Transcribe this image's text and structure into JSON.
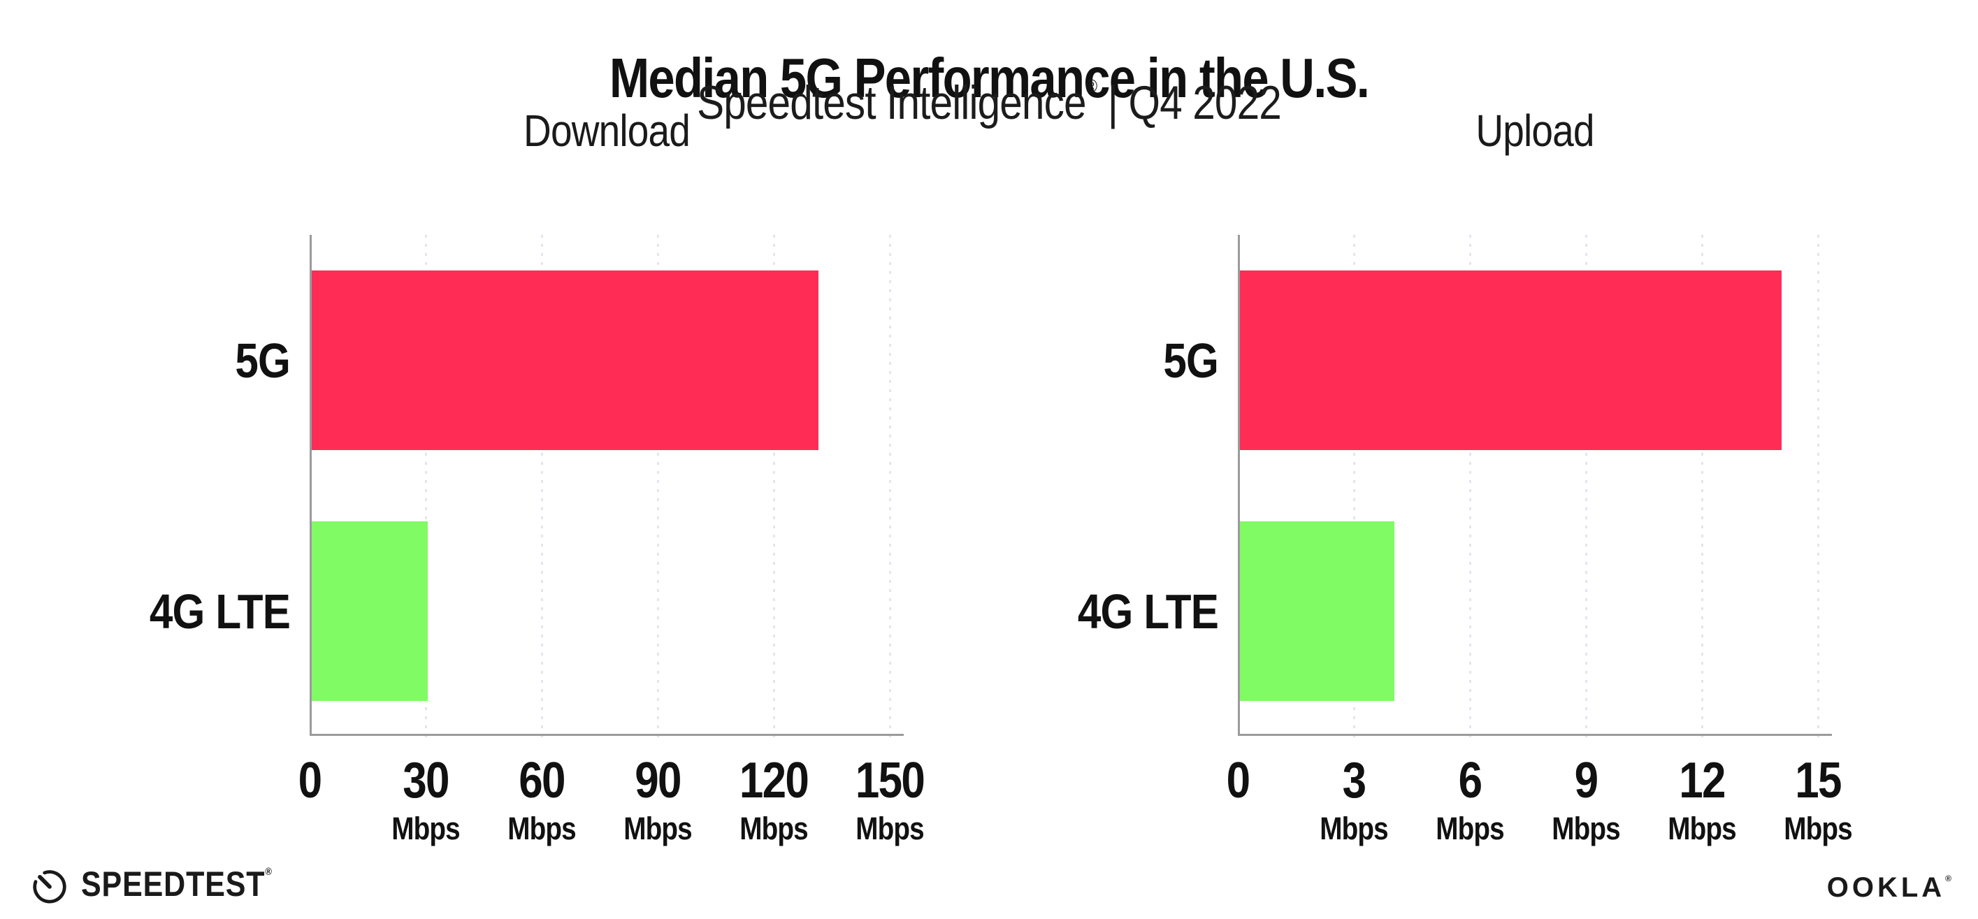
{
  "page": {
    "title": "Median 5G Performance in the U.S.",
    "subtitle": {
      "brand": "Speedtest Intelligence",
      "reg_mark": "®",
      "separator": "|",
      "period": "Q4 2022"
    }
  },
  "chart_data": [
    {
      "type": "bar",
      "orientation": "horizontal",
      "panel": "download",
      "title": "Download",
      "categories": [
        "5G",
        "4G LTE"
      ],
      "values": [
        131,
        30
      ],
      "unit": "Mbps",
      "xlabel": "",
      "ylabel": "",
      "xlim": [
        0,
        150
      ],
      "xticks": [
        0,
        30,
        60,
        90,
        120,
        150
      ],
      "series_colors": {
        "5G": "#FF2D55",
        "4G LTE": "#80FB64"
      },
      "grid": "dotted-vertical-gridlines",
      "legend": "none"
    },
    {
      "type": "bar",
      "orientation": "horizontal",
      "panel": "upload",
      "title": "Upload",
      "categories": [
        "5G",
        "4G LTE"
      ],
      "values": [
        14,
        4
      ],
      "unit": "Mbps",
      "xlabel": "",
      "ylabel": "",
      "xlim": [
        0,
        15
      ],
      "xticks": [
        0,
        3,
        6,
        9,
        12,
        15
      ],
      "series_colors": {
        "5G": "#FF2D55",
        "4G LTE": "#80FB64"
      },
      "grid": "dotted-vertical-gridlines",
      "legend": "none"
    }
  ],
  "footer": {
    "speedtest": {
      "label": "SPEEDTEST",
      "trademark": "®",
      "icon": "speedtest-gauge-icon"
    },
    "ookla": {
      "label": "OOKLA",
      "trademark": "®"
    }
  },
  "style": {
    "bar_5g_color": "#FF2D55",
    "bar_4g_color": "#80FB64",
    "axis_color": "#9B9B9B",
    "gridline_color": "#E2E4F0",
    "text_color": "#111111",
    "background": "#FFFFFF"
  }
}
